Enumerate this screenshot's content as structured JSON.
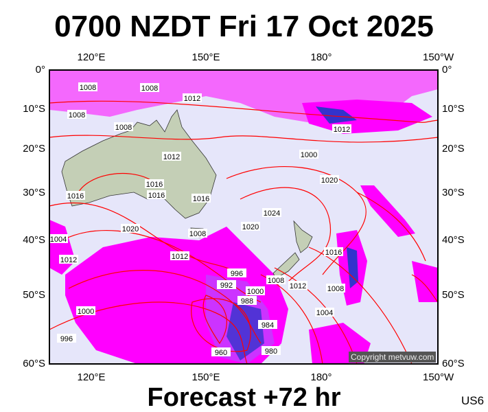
{
  "title": "0700 NZDT Fri 17 Oct 2025",
  "footer": "Forecast +72 hr",
  "code": "US6",
  "copyright": "Copyright metvuw.com",
  "lon_ticks": [
    "120°E",
    "150°E",
    "180°",
    "150°W"
  ],
  "lat_ticks": [
    "0°",
    "10°S",
    "20°S",
    "30°S",
    "40°S",
    "50°S",
    "60°S"
  ],
  "isobar_labels": [
    "1008",
    "1008",
    "1012",
    "1008",
    "1008",
    "1012",
    "1012",
    "1016",
    "1016",
    "1016",
    "1016",
    "1020",
    "1020",
    "1024",
    "1020",
    "1008",
    "1012",
    "1004",
    "1008",
    "1012",
    "1016",
    "1008",
    "1004",
    "1000",
    "996",
    "992",
    "988",
    "984",
    "980",
    "960",
    "1000",
    "996",
    "1012",
    "1000"
  ],
  "colors": {
    "ocean": "#e6e6fa",
    "land": "#c4cfb6",
    "isobar": "#ff0000",
    "rain": "#ff00ff",
    "heavy_rain": "#3333cc"
  }
}
